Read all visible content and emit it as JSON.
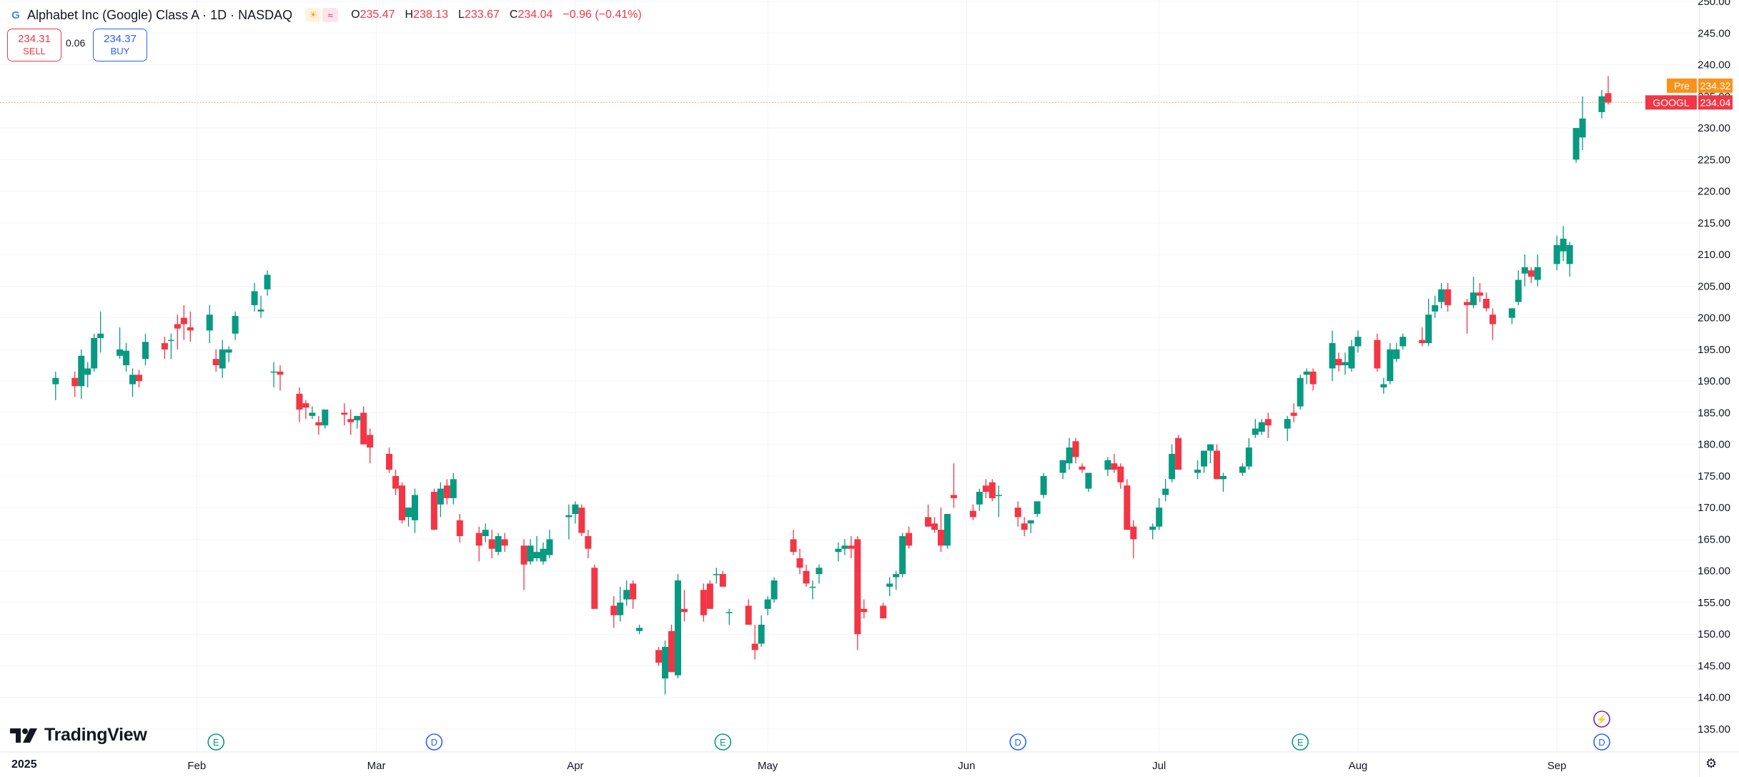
{
  "header": {
    "title": "Alphabet Inc (Google) Class A · 1D · NASDAQ",
    "logo_letter": "G",
    "badges": [
      "sun-icon",
      "wave-icon"
    ],
    "ohlc": {
      "o_label": "O",
      "o": "235.47",
      "h_label": "H",
      "h": "238.13",
      "l_label": "L",
      "l": "233.67",
      "c_label": "C",
      "c": "234.04",
      "change": "−0.96 (−0.41%)"
    }
  },
  "trade": {
    "sell_price": "234.31",
    "sell_label": "SELL",
    "spread": "0.06",
    "buy_price": "234.37",
    "buy_label": "BUY"
  },
  "branding": {
    "name": "TradingView"
  },
  "time_axis": {
    "year_label": "2025"
  },
  "colors": {
    "up": "#089981",
    "down": "#f23645",
    "pre": "#f7931a",
    "event_dividend": "#2962ff",
    "event_earnings": "#089981",
    "event_split": "#7b1fa2"
  },
  "chart_data": {
    "type": "candlestick",
    "symbol": "GOOGL",
    "ylim": [
      135,
      250
    ],
    "yticks": [
      135,
      140,
      145,
      150,
      155,
      160,
      165,
      170,
      175,
      180,
      185,
      190,
      195,
      200,
      205,
      210,
      215,
      220,
      225,
      230,
      235,
      240,
      245,
      250
    ],
    "date_start": "2025-01-02",
    "date_end": "2025-09-09",
    "x_end": "2025-10-06",
    "month_ticks": [
      {
        "label": "Feb",
        "date": "2025-02-01"
      },
      {
        "label": "Mar",
        "date": "2025-03-01"
      },
      {
        "label": "Apr",
        "date": "2025-04-01"
      },
      {
        "label": "May",
        "date": "2025-05-01"
      },
      {
        "label": "Jun",
        "date": "2025-06-01"
      },
      {
        "label": "Jul",
        "date": "2025-07-01"
      },
      {
        "label": "Aug",
        "date": "2025-08-01"
      },
      {
        "label": "Sep",
        "date": "2025-09-01"
      }
    ],
    "price_labels": [
      {
        "tag": "Pre",
        "value": "234.32"
      },
      {
        "tag": "GOOGL",
        "value": "234.04"
      }
    ],
    "last_price": 234.04,
    "events": [
      {
        "type": "earnings",
        "letter": "E",
        "date": "2025-02-04"
      },
      {
        "type": "dividend",
        "letter": "D",
        "date": "2025-03-10"
      },
      {
        "type": "earnings",
        "letter": "E",
        "date": "2025-04-24"
      },
      {
        "type": "dividend",
        "letter": "D",
        "date": "2025-06-09"
      },
      {
        "type": "earnings",
        "letter": "E",
        "date": "2025-07-23"
      },
      {
        "type": "dividend",
        "letter": "D",
        "date": "2025-09-08"
      },
      {
        "type": "split",
        "letter": "⚡",
        "date": "2025-09-08"
      }
    ],
    "candles": [
      [
        189.5,
        191.5,
        187.0,
        190.5
      ],
      [
        190.5,
        191.5,
        187.5,
        189.2
      ],
      [
        189.2,
        195.0,
        187.2,
        194.0
      ],
      [
        191.0,
        193.0,
        189.0,
        192.0
      ],
      [
        192.0,
        197.5,
        191.5,
        196.8
      ],
      [
        196.8,
        201.0,
        194.5,
        197.5
      ],
      [
        194.0,
        198.5,
        193.5,
        195.0
      ],
      [
        192.5,
        196.0,
        191.5,
        194.8
      ],
      [
        189.5,
        192.0,
        187.5,
        191.0
      ],
      [
        191.0,
        191.8,
        189.0,
        190.0
      ],
      [
        193.5,
        197.5,
        192.5,
        196.2
      ],
      [
        196.0,
        197.0,
        193.5,
        195.0
      ],
      [
        196.5,
        197.5,
        193.5,
        196.5
      ],
      [
        199.0,
        200.5,
        195.0,
        198.3
      ],
      [
        200.0,
        202.0,
        196.5,
        199.0
      ],
      [
        198.5,
        201.0,
        196.2,
        198.0
      ],
      [
        198.0,
        202.0,
        196.0,
        200.5
      ],
      [
        193.5,
        195.0,
        191.5,
        192.5
      ],
      [
        192.0,
        196.5,
        190.5,
        195.0
      ],
      [
        194.5,
        195.5,
        193.0,
        195.0
      ],
      [
        197.5,
        201.0,
        196.5,
        200.3
      ],
      [
        202.0,
        205.5,
        201.0,
        204.2
      ],
      [
        201.0,
        203.5,
        200.0,
        201.3
      ],
      [
        204.5,
        207.5,
        203.5,
        206.8
      ],
      [
        191.5,
        193.0,
        189.0,
        191.5
      ],
      [
        191.5,
        192.5,
        188.5,
        191.0
      ],
      [
        188.0,
        189.0,
        183.5,
        185.5
      ],
      [
        186.5,
        187.0,
        184.0,
        185.8
      ],
      [
        184.5,
        186.0,
        184.0,
        185.0
      ],
      [
        183.5,
        184.5,
        181.5,
        183.0
      ],
      [
        183.0,
        185.0,
        182.5,
        185.5
      ],
      [
        185.0,
        186.5,
        183.0,
        184.7
      ],
      [
        184.0,
        185.5,
        181.5,
        183.5
      ],
      [
        183.8,
        184.0,
        182.5,
        184.5
      ],
      [
        185.0,
        186.0,
        180.5,
        180.0
      ],
      [
        181.5,
        182.5,
        177.0,
        179.5
      ],
      [
        178.5,
        179.5,
        175.5,
        176.0
      ],
      [
        175.0,
        176.0,
        172.0,
        173.0
      ],
      [
        173.5,
        174.0,
        167.5,
        168.0
      ],
      [
        168.5,
        170.0,
        167.0,
        170.0
      ],
      [
        168.0,
        173.0,
        166.0,
        172.0
      ],
      [
        172.5,
        173.0,
        166.5,
        166.5
      ],
      [
        170.5,
        174.0,
        168.5,
        173.0
      ],
      [
        173.5,
        174.5,
        170.5,
        171.5
      ],
      [
        171.5,
        175.5,
        170.5,
        174.5
      ],
      [
        168.0,
        169.0,
        164.5,
        165.5
      ],
      [
        166.0,
        167.0,
        161.5,
        164.0
      ],
      [
        165.5,
        167.5,
        164.5,
        166.5
      ],
      [
        165.0,
        166.5,
        162.0,
        163.5
      ],
      [
        163.0,
        166.0,
        162.5,
        165.5
      ],
      [
        165.0,
        166.0,
        163.0,
        164.0
      ],
      [
        164.0,
        165.0,
        157.0,
        161.0
      ],
      [
        161.5,
        165.0,
        161.0,
        164.0
      ],
      [
        162.0,
        165.5,
        161.5,
        163.0
      ],
      [
        161.5,
        164.5,
        161.0,
        163.5
      ],
      [
        162.5,
        166.5,
        162.0,
        165.0
      ],
      [
        168.5,
        170.5,
        165.0,
        168.8
      ],
      [
        169.0,
        171.0,
        167.5,
        170.5
      ],
      [
        170.0,
        170.5,
        165.5,
        166.0
      ],
      [
        165.5,
        166.5,
        162.0,
        163.5
      ],
      [
        160.5,
        161.0,
        154.5,
        154.0
      ],
      [
        154.5,
        156.0,
        151.0,
        153.0
      ],
      [
        153.0,
        157.5,
        152.0,
        155.0
      ],
      [
        155.5,
        158.5,
        154.5,
        157.0
      ],
      [
        158.0,
        158.5,
        154.0,
        155.5
      ],
      [
        150.5,
        151.5,
        150.0,
        151.0
      ],
      [
        147.5,
        148.0,
        145.0,
        145.5
      ],
      [
        143.0,
        149.0,
        140.5,
        148.0
      ],
      [
        150.5,
        151.5,
        144.0,
        144.0
      ],
      [
        143.5,
        159.5,
        143.0,
        158.5
      ],
      [
        154.0,
        157.0,
        152.0,
        153.5
      ],
      [
        157.0,
        158.0,
        152.0,
        153.0
      ],
      [
        158.0,
        158.5,
        155.0,
        154.0
      ],
      [
        159.5,
        160.5,
        158.0,
        159.5
      ],
      [
        159.5,
        160.0,
        158.0,
        157.5
      ],
      [
        153.5,
        154.0,
        151.5,
        153.5
      ],
      [
        154.5,
        155.5,
        151.5,
        151.5
      ],
      [
        148.5,
        151.5,
        146.0,
        147.5
      ],
      [
        148.5,
        153.0,
        148.0,
        151.5
      ],
      [
        154.0,
        156.0,
        153.0,
        155.5
      ],
      [
        155.5,
        159.0,
        155.0,
        158.5
      ],
      [
        165.0,
        166.5,
        162.5,
        163.0
      ],
      [
        162.0,
        163.5,
        159.5,
        160.5
      ],
      [
        160.0,
        161.0,
        157.5,
        158.0
      ],
      [
        157.5,
        158.5,
        155.5,
        157.5
      ],
      [
        159.5,
        161.0,
        158.0,
        160.5
      ],
      [
        163.0,
        164.5,
        161.5,
        163.5
      ],
      [
        163.5,
        165.0,
        162.5,
        164.0
      ],
      [
        164.0,
        165.5,
        162.0,
        163.5
      ],
      [
        165.0,
        165.5,
        147.5,
        150.0
      ],
      [
        154.0,
        155.5,
        152.5,
        153.5
      ],
      [
        154.5,
        155.0,
        152.5,
        152.5
      ],
      [
        157.5,
        159.0,
        156.0,
        158.0
      ],
      [
        159.0,
        160.0,
        157.0,
        159.5
      ],
      [
        159.5,
        166.0,
        159.0,
        165.5
      ],
      [
        166.0,
        167.0,
        163.5,
        164.0
      ],
      [
        168.5,
        170.5,
        167.0,
        167.0
      ],
      [
        167.5,
        168.5,
        166.0,
        166.5
      ],
      [
        166.5,
        170.0,
        163.0,
        164.0
      ],
      [
        164.0,
        169.0,
        163.5,
        169.0
      ],
      [
        172.0,
        177.0,
        170.0,
        171.5
      ],
      [
        169.5,
        170.5,
        168.0,
        168.5
      ],
      [
        170.5,
        173.0,
        169.5,
        172.5
      ],
      [
        173.5,
        174.5,
        171.5,
        172.5
      ],
      [
        174.0,
        174.5,
        171.0,
        171.5
      ],
      [
        172.0,
        173.5,
        168.5,
        172.0
      ],
      [
        170.0,
        171.0,
        167.0,
        168.5
      ],
      [
        167.5,
        168.5,
        165.5,
        166.5
      ],
      [
        167.5,
        168.0,
        166.0,
        168.0
      ],
      [
        169.0,
        170.5,
        168.5,
        171.0
      ],
      [
        172.0,
        175.5,
        171.5,
        175.0
      ],
      [
        175.5,
        177.5,
        174.5,
        177.5
      ],
      [
        177.0,
        181.0,
        176.0,
        179.5
      ],
      [
        180.5,
        181.0,
        177.0,
        178.0
      ],
      [
        176.5,
        177.0,
        175.5,
        176.0
      ],
      [
        173.0,
        175.5,
        172.5,
        175.5
      ],
      [
        176.0,
        178.0,
        175.0,
        177.5
      ],
      [
        177.0,
        178.5,
        175.5,
        176.0
      ],
      [
        176.5,
        177.0,
        173.0,
        174.0
      ],
      [
        173.5,
        174.5,
        166.5,
        166.5
      ],
      [
        167.0,
        168.0,
        162.0,
        165.0
      ],
      [
        166.5,
        167.5,
        165.0,
        167.0
      ],
      [
        167.0,
        171.5,
        166.5,
        170.0
      ],
      [
        172.0,
        174.5,
        171.0,
        173.0
      ],
      [
        174.5,
        180.0,
        174.0,
        178.5
      ],
      [
        181.0,
        181.5,
        176.5,
        176.0
      ],
      [
        175.5,
        177.5,
        174.5,
        176.0
      ],
      [
        176.5,
        179.0,
        175.5,
        179.0
      ],
      [
        179.0,
        180.0,
        177.0,
        180.0
      ],
      [
        179.0,
        180.0,
        175.0,
        174.5
      ],
      [
        174.5,
        175.5,
        172.5,
        175.0
      ],
      [
        175.5,
        177.0,
        175.0,
        176.5
      ],
      [
        176.5,
        181.0,
        176.0,
        179.5
      ],
      [
        181.5,
        184.0,
        181.0,
        182.5
      ],
      [
        182.0,
        184.0,
        181.5,
        183.5
      ],
      [
        184.0,
        185.0,
        181.0,
        183.0
      ],
      [
        182.5,
        184.5,
        180.5,
        184.0
      ],
      [
        185.0,
        186.5,
        183.5,
        184.5
      ],
      [
        186.0,
        191.0,
        185.5,
        190.5
      ],
      [
        191.0,
        192.0,
        189.5,
        191.5
      ],
      [
        191.5,
        192.0,
        188.5,
        189.5
      ],
      [
        192.0,
        198.0,
        190.0,
        196.0
      ],
      [
        193.5,
        194.5,
        191.5,
        192.5
      ],
      [
        192.5,
        194.5,
        191.0,
        193.0
      ],
      [
        192.0,
        196.5,
        191.5,
        195.5
      ],
      [
        195.5,
        198.0,
        194.5,
        197.0
      ],
      [
        196.5,
        197.5,
        191.5,
        192.0
      ],
      [
        189.0,
        190.5,
        188.0,
        189.5
      ],
      [
        190.0,
        196.0,
        189.5,
        195.0
      ],
      [
        193.5,
        196.0,
        193.0,
        195.0
      ],
      [
        195.5,
        197.5,
        195.0,
        197.0
      ],
      [
        196.5,
        198.5,
        195.5,
        196.0
      ],
      [
        196.0,
        203.0,
        195.5,
        200.5
      ],
      [
        201.0,
        203.5,
        200.0,
        202.0
      ],
      [
        202.5,
        205.5,
        201.5,
        204.5
      ],
      [
        204.5,
        205.5,
        201.0,
        202.0
      ],
      [
        202.5,
        203.0,
        197.5,
        202.0
      ],
      [
        202.0,
        206.5,
        201.5,
        204.0
      ],
      [
        204.0,
        205.5,
        202.5,
        203.5
      ],
      [
        203.0,
        204.0,
        201.0,
        201.5
      ],
      [
        200.5,
        201.5,
        196.5,
        199.0
      ],
      [
        200.0,
        201.5,
        199.0,
        201.5
      ],
      [
        202.5,
        207.5,
        202.0,
        206.0
      ],
      [
        207.0,
        210.0,
        205.0,
        208.0
      ],
      [
        207.5,
        208.0,
        205.5,
        206.5
      ],
      [
        206.0,
        210.0,
        205.0,
        208.0
      ],
      [
        208.5,
        213.0,
        207.5,
        211.5
      ],
      [
        210.5,
        214.5,
        209.0,
        212.5
      ],
      [
        208.5,
        212.0,
        206.5,
        211.5
      ],
      [
        225.0,
        229.5,
        224.5,
        230.0
      ],
      [
        228.5,
        235.0,
        226.5,
        231.5
      ],
      [
        232.5,
        236.0,
        231.5,
        235.0
      ],
      [
        235.5,
        238.2,
        233.7,
        234.0
      ]
    ]
  }
}
